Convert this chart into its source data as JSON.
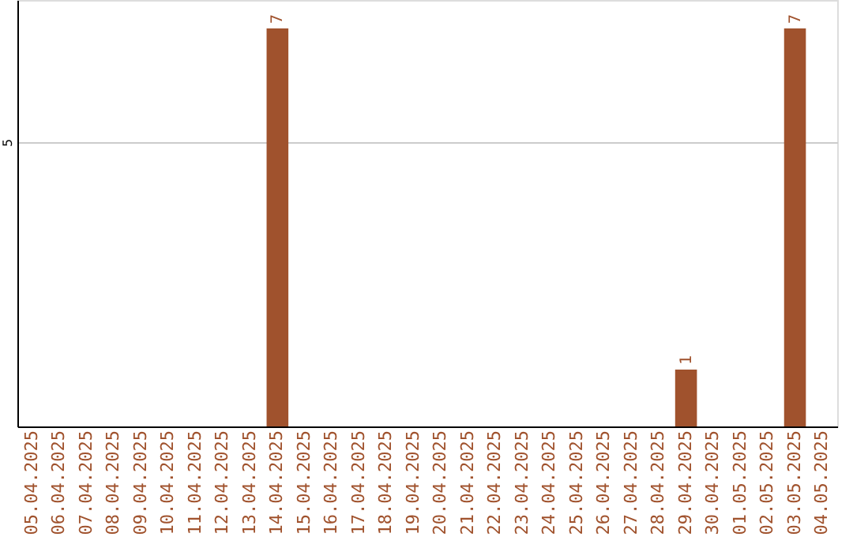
{
  "chart_data": {
    "type": "bar",
    "categories": [
      "05.04.2025",
      "06.04.2025",
      "07.04.2025",
      "08.04.2025",
      "09.04.2025",
      "10.04.2025",
      "11.04.2025",
      "12.04.2025",
      "13.04.2025",
      "14.04.2025",
      "15.04.2025",
      "16.04.2025",
      "17.04.2025",
      "18.04.2025",
      "19.04.2025",
      "20.04.2025",
      "21.04.2025",
      "22.04.2025",
      "23.04.2025",
      "24.04.2025",
      "25.04.2025",
      "26.04.2025",
      "27.04.2025",
      "28.04.2025",
      "29.04.2025",
      "30.04.2025",
      "01.05.2025",
      "02.05.2025",
      "03.05.2025",
      "04.05.2025"
    ],
    "values": [
      0,
      0,
      0,
      0,
      0,
      0,
      0,
      0,
      0,
      7,
      0,
      0,
      0,
      0,
      0,
      0,
      0,
      0,
      0,
      0,
      0,
      0,
      0,
      0,
      1,
      0,
      0,
      0,
      7,
      0
    ],
    "value_labels": [
      null,
      null,
      null,
      null,
      null,
      null,
      null,
      null,
      null,
      "7",
      null,
      null,
      null,
      null,
      null,
      null,
      null,
      null,
      null,
      null,
      null,
      null,
      null,
      null,
      "1",
      null,
      null,
      null,
      "7",
      null
    ],
    "color": "#a0522d",
    "ylim": [
      0,
      7.5
    ],
    "yticks": [
      5
    ],
    "grid": "y"
  }
}
